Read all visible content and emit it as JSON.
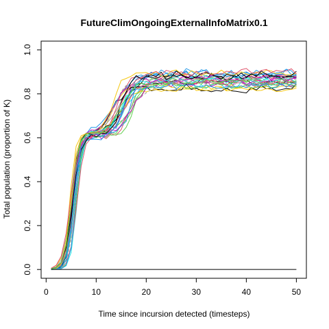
{
  "chart_data": {
    "type": "line",
    "title": "FutureClimOngoingExternalInfoMatrix0.1",
    "xlabel": "Time since incursion detected (timesteps)",
    "ylabel": "Total population (proportion of K)",
    "xlim": [
      -1,
      52
    ],
    "ylim": [
      -0.04,
      1.04
    ],
    "x_ticks": [
      0,
      10,
      20,
      30,
      40,
      50
    ],
    "x_tick_labels": [
      "0",
      "10",
      "20",
      "30",
      "40",
      "50"
    ],
    "y_ticks": [
      0.0,
      0.2,
      0.4,
      0.6,
      0.8,
      1.0
    ],
    "y_tick_labels": [
      "0.0",
      "0.2",
      "0.4",
      "0.6",
      "0.8",
      "1.0"
    ],
    "grid": false,
    "legend": "none",
    "series_count": 28,
    "series_colors": [
      "#000000",
      "#DF536B",
      "#61D04F",
      "#2297E6",
      "#28E2E5",
      "#CD0BBC",
      "#F5C710",
      "#9E9E9E"
    ],
    "shape": {
      "x_start": 1,
      "x_end": 50,
      "rise_midpoint_range": [
        4.6,
        6.2
      ],
      "plateau_level_range": [
        0.6,
        0.63
      ],
      "second_rise_midpoint_range": [
        12.5,
        17.5
      ],
      "final_level_range": [
        0.82,
        0.9
      ]
    },
    "reference_line": {
      "y": 0.0,
      "x_from": 1,
      "x_to": 50,
      "color": "#000000"
    }
  }
}
